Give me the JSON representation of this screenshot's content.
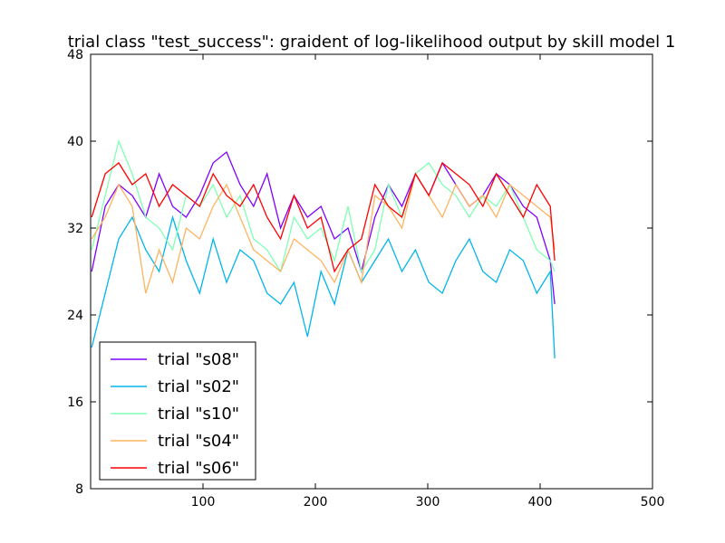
{
  "chart_data": {
    "type": "line",
    "title": "trial class \"test_success\": graident of log-likelihood output by skill model 1",
    "xlabel": "",
    "ylabel": "",
    "xlim": [
      0,
      500
    ],
    "ylim": [
      8,
      48
    ],
    "xticks": [
      100,
      200,
      300,
      400,
      500
    ],
    "yticks": [
      8,
      16,
      24,
      32,
      40,
      48
    ],
    "grid": false,
    "legend_position": "lower-left",
    "x": [
      1,
      13,
      25,
      37,
      49,
      61,
      73,
      85,
      97,
      109,
      121,
      133,
      145,
      157,
      169,
      181,
      193,
      205,
      217,
      229,
      241,
      253,
      265,
      277,
      289,
      301,
      313,
      325,
      337,
      349,
      361,
      373,
      385,
      397,
      409,
      413
    ],
    "series": [
      {
        "name": "trial \"s08\"",
        "color": "#8000ff",
        "values": [
          28,
          34,
          36,
          35,
          33,
          37,
          34,
          33,
          35,
          38,
          39,
          36,
          34,
          37,
          32,
          35,
          33,
          34,
          31,
          32,
          28,
          33,
          36,
          34,
          37,
          35,
          38,
          36,
          34,
          35,
          37,
          36,
          34,
          33,
          29,
          25
        ]
      },
      {
        "name": "trial \"s02\"",
        "color": "#00b5eb",
        "values": [
          21,
          26,
          31,
          33,
          30,
          28,
          33,
          29,
          26,
          31,
          27,
          30,
          29,
          26,
          25,
          27,
          22,
          28,
          25,
          30,
          27,
          29,
          31,
          28,
          30,
          27,
          26,
          29,
          31,
          28,
          27,
          30,
          29,
          26,
          28,
          20
        ]
      },
      {
        "name": "trial \"s10\"",
        "color": "#80ffb4",
        "values": [
          30,
          35,
          40,
          37,
          33,
          32,
          30,
          35,
          34,
          36,
          33,
          35,
          31,
          30,
          28,
          33,
          31,
          32,
          29,
          34,
          28,
          30,
          36,
          33,
          37,
          38,
          36,
          35,
          33,
          35,
          34,
          36,
          33,
          30,
          29,
          28
        ]
      },
      {
        "name": "trial \"s04\"",
        "color": "#ffb360",
        "values": [
          31,
          33,
          36,
          34,
          26,
          30,
          27,
          32,
          31,
          34,
          36,
          33,
          30,
          29,
          28,
          31,
          30,
          29,
          27,
          30,
          27,
          35,
          34,
          32,
          37,
          35,
          33,
          36,
          34,
          35,
          33,
          36,
          35,
          34,
          33,
          30
        ]
      },
      {
        "name": "trial \"s06\"",
        "color": "#ff0000",
        "values": [
          33,
          37,
          38,
          36,
          37,
          34,
          36,
          35,
          34,
          37,
          35,
          34,
          36,
          33,
          31,
          35,
          32,
          33,
          28,
          30,
          31,
          36,
          34,
          33,
          37,
          35,
          38,
          37,
          36,
          34,
          37,
          35,
          33,
          36,
          34,
          29
        ]
      }
    ]
  }
}
